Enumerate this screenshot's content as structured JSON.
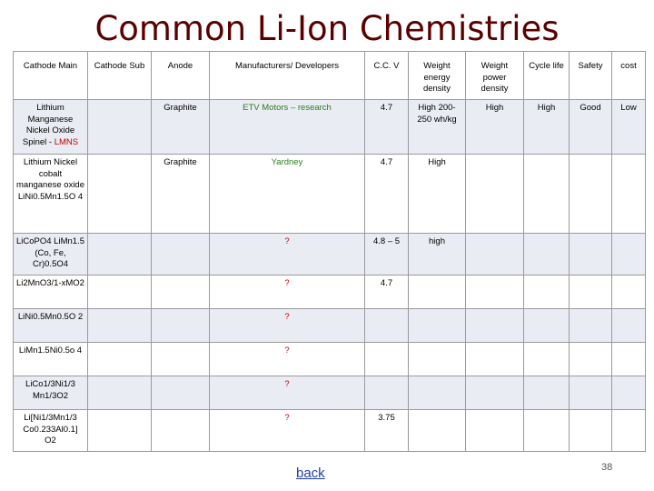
{
  "slide": {
    "title": "Common Li-Ion Chemistries",
    "back_label": "back",
    "page_number": "38"
  },
  "table": {
    "headers": [
      "Cathode Main",
      "Cathode Sub",
      "Anode",
      "Manufacturers/ Developers",
      "C.C. V",
      "Weight energy density",
      "Weight power density",
      "Cycle life",
      "Safety",
      "cost"
    ],
    "rows": [
      {
        "cathode_main": "Lithium Manganese Nickel Oxide Spinel - ",
        "cathode_main_highlight": "LMNS",
        "cathode_sub": "",
        "anode": "Graphite",
        "manufacturers": "ETV Motors – research",
        "ccv": "4.7",
        "weight_energy": "High 200-250 wh/kg",
        "weight_power": "High",
        "cycle_life": "High",
        "safety": "Good",
        "cost": "Low"
      },
      {
        "cathode_main": "Lithium Nickel cobalt manganese oxide LiNi0.5Mn1.5O 4",
        "cathode_sub": "",
        "anode": "Graphite",
        "manufacturers": "Yardney",
        "ccv": "4.7",
        "weight_energy": "High",
        "weight_power": "",
        "cycle_life": "",
        "safety": "",
        "cost": ""
      },
      {
        "cathode_main": "LiCoPO4 LiMn1.5 (Co, Fe, Cr)0.5O4",
        "cathode_sub": "",
        "anode": "",
        "manufacturers": "?",
        "ccv": "4.8 – 5",
        "weight_energy": "high",
        "weight_power": "",
        "cycle_life": "",
        "safety": "",
        "cost": ""
      },
      {
        "cathode_main": "Li2MnO3/1-xMO2",
        "cathode_sub": "",
        "anode": "",
        "manufacturers": "?",
        "ccv": "4.7",
        "weight_energy": "",
        "weight_power": "",
        "cycle_life": "",
        "safety": "",
        "cost": ""
      },
      {
        "cathode_main": "LiNi0.5Mn0.5O 2",
        "cathode_sub": "",
        "anode": "",
        "manufacturers": "?",
        "ccv": "",
        "weight_energy": "",
        "weight_power": "",
        "cycle_life": "",
        "safety": "",
        "cost": ""
      },
      {
        "cathode_main": "LiMn1.5Ni0.5o 4",
        "cathode_sub": "",
        "anode": "",
        "manufacturers": "?",
        "ccv": "",
        "weight_energy": "",
        "weight_power": "",
        "cycle_life": "",
        "safety": "",
        "cost": ""
      },
      {
        "cathode_main": "LiCo1/3Ni1/3 Mn1/3O2",
        "cathode_sub": "",
        "anode": "",
        "manufacturers": "?",
        "ccv": "",
        "weight_energy": "",
        "weight_power": "",
        "cycle_life": "",
        "safety": "",
        "cost": ""
      },
      {
        "cathode_main": "Li[Ni1/3Mn1/3 Co0.233Al0.1] O2",
        "cathode_sub": "",
        "anode": "",
        "manufacturers": "?",
        "ccv": "3.75",
        "weight_energy": "",
        "weight_power": "",
        "cycle_life": "",
        "safety": "",
        "cost": ""
      }
    ]
  },
  "colors": {
    "title": "#5a0000",
    "link": "#1f3fa6",
    "highlight_red": "#c00000",
    "highlight_green": "#2f7d1e",
    "row_band": "#e9ecf2"
  }
}
